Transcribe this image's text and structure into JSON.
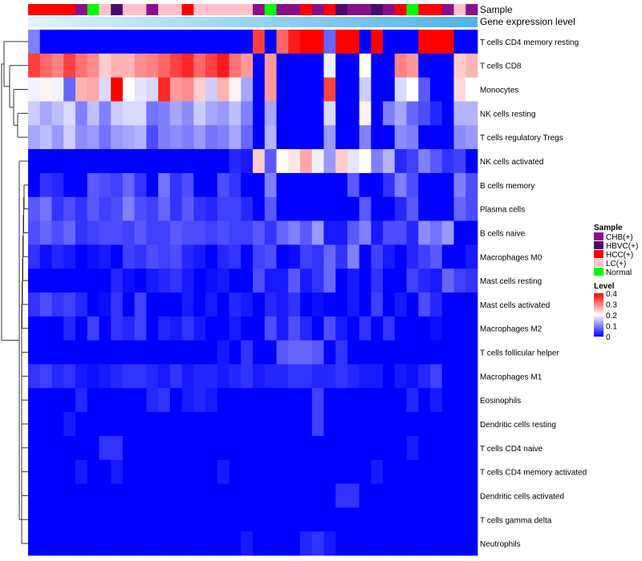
{
  "chart_data": {
    "type": "heatmap",
    "annotation_labels": [
      "Sample",
      "Gene expression level"
    ],
    "rows": [
      "T cells CD4 memory resting",
      "T cells CD8",
      "Monocytes",
      "NK cells resting",
      "T cells regulatory  Tregs",
      "NK cells activated",
      "B cells memory",
      "Plasma cells",
      "B cells naive",
      "Macrophages M0",
      "Mast cells resting",
      "Mast cells activated",
      "Macrophages M2",
      "T cells follicular helper",
      "Macrophages M1",
      "Eosinophils",
      "Dendritic cells resting",
      "T cells CD4 naive",
      "T cells CD4 memory activated",
      "Dendritic cells activated",
      "T cells gamma delta",
      "Neutrophils"
    ],
    "sample_groups": [
      "HCC",
      "HCC",
      "HCC",
      "HCC",
      "CHB",
      "Normal",
      "LC",
      "HBVC",
      "LC",
      "LC",
      "CHB",
      "LC",
      "LC",
      "HCC",
      "LC",
      "LC",
      "LC",
      "LC",
      "LC",
      "CHB",
      "Normal",
      "CHB",
      "CHB",
      "HCC",
      "CHB",
      "HCC",
      "HBVC",
      "CHB",
      "CHB",
      "HBVC",
      "CHB",
      "HCC",
      "Normal",
      "HCC",
      "HCC",
      "CHB",
      "LC",
      "CHB"
    ],
    "columns_count": 38,
    "values": [
      [
        0.1,
        0.0,
        0.0,
        0.0,
        0.0,
        0.0,
        0.0,
        0.0,
        0.0,
        0.0,
        0.0,
        0.0,
        0.0,
        0.0,
        0.0,
        0.0,
        0.0,
        0.0,
        0.0,
        0.35,
        0.0,
        0.32,
        0.38,
        0.4,
        0.4,
        0.08,
        0.4,
        0.4,
        0.0,
        0.4,
        0.0,
        0.0,
        0.0,
        0.4,
        0.4,
        0.4,
        0.0,
        0.0
      ],
      [
        0.35,
        0.32,
        0.3,
        0.35,
        0.31,
        0.29,
        0.24,
        0.26,
        0.26,
        0.29,
        0.3,
        0.32,
        0.35,
        0.37,
        0.32,
        0.35,
        0.38,
        0.31,
        0.28,
        0.0,
        0.28,
        0.0,
        0.0,
        0.0,
        0.0,
        0.19,
        0.0,
        0.0,
        0.2,
        0.0,
        0.0,
        0.3,
        0.28,
        0.0,
        0.0,
        0.0,
        0.24,
        0.26
      ],
      [
        0.19,
        0.21,
        0.19,
        0.08,
        0.26,
        0.27,
        0.17,
        0.4,
        0.2,
        0.18,
        0.17,
        0.37,
        0.28,
        0.29,
        0.24,
        0.16,
        0.26,
        0.21,
        0.13,
        0.0,
        0.28,
        0.0,
        0.0,
        0.0,
        0.0,
        0.35,
        0.0,
        0.0,
        0.16,
        0.0,
        0.0,
        0.17,
        0.2,
        0.07,
        0.0,
        0.0,
        0.23,
        0.2
      ],
      [
        0.16,
        0.13,
        0.15,
        0.17,
        0.1,
        0.15,
        0.1,
        0.16,
        0.17,
        0.17,
        0.09,
        0.1,
        0.13,
        0.11,
        0.16,
        0.13,
        0.12,
        0.15,
        0.1,
        0.0,
        0.13,
        0.0,
        0.0,
        0.0,
        0.0,
        0.17,
        0.0,
        0.0,
        0.21,
        0.0,
        0.1,
        0.13,
        0.08,
        0.06,
        0.03,
        0.0,
        0.14,
        0.14
      ],
      [
        0.13,
        0.15,
        0.12,
        0.16,
        0.11,
        0.12,
        0.09,
        0.12,
        0.13,
        0.14,
        0.06,
        0.1,
        0.11,
        0.1,
        0.12,
        0.09,
        0.1,
        0.13,
        0.08,
        0.0,
        0.14,
        0.0,
        0.0,
        0.0,
        0.0,
        0.12,
        0.0,
        0.0,
        0.1,
        0.0,
        0.0,
        0.11,
        0.1,
        0.0,
        0.0,
        0.0,
        0.11,
        0.12
      ],
      [
        0.0,
        0.0,
        0.0,
        0.0,
        0.0,
        0.0,
        0.0,
        0.0,
        0.0,
        0.0,
        0.0,
        0.0,
        0.0,
        0.0,
        0.0,
        0.0,
        0.0,
        0.03,
        0.02,
        0.24,
        0.07,
        0.2,
        0.22,
        0.27,
        0.19,
        0.12,
        0.24,
        0.18,
        0.2,
        0.1,
        0.14,
        0.03,
        0.05,
        0.1,
        0.07,
        0.04,
        0.05,
        0.0
      ],
      [
        0.0,
        0.04,
        0.03,
        0.0,
        0.0,
        0.07,
        0.06,
        0.05,
        0.08,
        0.04,
        0.0,
        0.09,
        0.04,
        0.06,
        0.0,
        0.0,
        0.06,
        0.04,
        0.0,
        0.0,
        0.1,
        0.0,
        0.0,
        0.0,
        0.0,
        0.0,
        0.0,
        0.07,
        0.0,
        0.0,
        0.04,
        0.1,
        0.06,
        0.0,
        0.0,
        0.0,
        0.1,
        0.06
      ],
      [
        0.07,
        0.09,
        0.04,
        0.06,
        0.04,
        0.07,
        0.05,
        0.06,
        0.1,
        0.06,
        0.05,
        0.08,
        0.04,
        0.07,
        0.04,
        0.03,
        0.05,
        0.05,
        0.03,
        0.0,
        0.07,
        0.0,
        0.0,
        0.0,
        0.0,
        0.0,
        0.0,
        0.0,
        0.07,
        0.0,
        0.0,
        0.03,
        0.07,
        0.0,
        0.0,
        0.0,
        0.08,
        0.06
      ],
      [
        0.06,
        0.08,
        0.06,
        0.08,
        0.04,
        0.05,
        0.06,
        0.06,
        0.05,
        0.07,
        0.05,
        0.05,
        0.07,
        0.06,
        0.06,
        0.05,
        0.06,
        0.05,
        0.05,
        0.07,
        0.04,
        0.08,
        0.1,
        0.07,
        0.12,
        0.02,
        0.02,
        0.07,
        0.1,
        0.02,
        0.06,
        0.06,
        0.03,
        0.11,
        0.09,
        0.12,
        0.0,
        0.0
      ],
      [
        0.04,
        0.01,
        0.03,
        0.02,
        0.0,
        0.01,
        0.02,
        0.0,
        0.05,
        0.04,
        0.06,
        0.05,
        0.06,
        0.03,
        0.02,
        0.0,
        0.03,
        0.04,
        0.0,
        0.05,
        0.06,
        0.0,
        0.01,
        0.05,
        0.04,
        0.08,
        0.04,
        0.1,
        0.0,
        0.05,
        0.02,
        0.0,
        0.03,
        0.05,
        0.07,
        0.0,
        0.0,
        0.02
      ],
      [
        0.0,
        0.0,
        0.0,
        0.0,
        0.0,
        0.0,
        0.0,
        0.03,
        0.01,
        0.0,
        0.02,
        0.03,
        0.04,
        0.02,
        0.0,
        0.01,
        0.02,
        0.0,
        0.0,
        0.06,
        0.02,
        0.02,
        0.07,
        0.02,
        0.04,
        0.08,
        0.0,
        0.02,
        0.0,
        0.04,
        0.0,
        0.0,
        0.05,
        0.03,
        0.02,
        0.08,
        0.05,
        0.04
      ],
      [
        0.04,
        0.06,
        0.04,
        0.05,
        0.03,
        0.0,
        0.01,
        0.04,
        0.0,
        0.05,
        0.0,
        0.0,
        0.0,
        0.02,
        0.0,
        0.02,
        0.0,
        0.03,
        0.02,
        0.0,
        0.03,
        0.02,
        0.04,
        0.0,
        0.01,
        0.0,
        0.0,
        0.02,
        0.0,
        0.05,
        0.0,
        0.02,
        0.0,
        0.06,
        0.03,
        0.0,
        0.0,
        0.0
      ],
      [
        0.0,
        0.0,
        0.0,
        0.03,
        0.0,
        0.05,
        0.0,
        0.04,
        0.03,
        0.05,
        0.0,
        0.03,
        0.02,
        0.04,
        0.02,
        0.0,
        0.0,
        0.02,
        0.0,
        0.0,
        0.06,
        0.02,
        0.06,
        0.03,
        0.0,
        0.06,
        0.02,
        0.0,
        0.04,
        0.0,
        0.04,
        0.0,
        0.0,
        0.0,
        0.01,
        0.0,
        0.0,
        0.0
      ],
      [
        0.0,
        0.0,
        0.0,
        0.0,
        0.0,
        0.0,
        0.0,
        0.0,
        0.0,
        0.0,
        0.0,
        0.0,
        0.0,
        0.0,
        0.0,
        0.0,
        0.02,
        0.0,
        0.04,
        0.0,
        0.0,
        0.07,
        0.08,
        0.08,
        0.07,
        0.0,
        0.04,
        0.0,
        0.0,
        0.0,
        0.0,
        0.0,
        0.0,
        0.0,
        0.0,
        0.0,
        0.0,
        0.0
      ],
      [
        0.04,
        0.05,
        0.03,
        0.04,
        0.02,
        0.01,
        0.02,
        0.03,
        0.04,
        0.04,
        0.03,
        0.02,
        0.04,
        0.02,
        0.03,
        0.03,
        0.02,
        0.03,
        0.04,
        0.02,
        0.03,
        0.03,
        0.04,
        0.04,
        0.03,
        0.03,
        0.04,
        0.03,
        0.02,
        0.02,
        0.0,
        0.02,
        0.01,
        0.03,
        0.05,
        0.0,
        0.0,
        0.0
      ],
      [
        0.0,
        0.0,
        0.0,
        0.0,
        0.03,
        0.0,
        0.0,
        0.0,
        0.0,
        0.0,
        0.03,
        0.04,
        0.0,
        0.02,
        0.03,
        0.02,
        0.0,
        0.0,
        0.0,
        0.0,
        0.0,
        0.0,
        0.0,
        0.0,
        0.05,
        0.0,
        0.0,
        0.0,
        0.0,
        0.0,
        0.0,
        0.0,
        0.03,
        0.0,
        0.02,
        0.0,
        0.0,
        0.0
      ],
      [
        0.0,
        0.0,
        0.0,
        0.02,
        0.0,
        0.0,
        0.0,
        0.0,
        0.0,
        0.0,
        0.0,
        0.0,
        0.0,
        0.0,
        0.0,
        0.0,
        0.0,
        0.0,
        0.0,
        0.0,
        0.0,
        0.0,
        0.0,
        0.0,
        0.05,
        0.0,
        0.0,
        0.0,
        0.0,
        0.0,
        0.0,
        0.0,
        0.0,
        0.0,
        0.0,
        0.0,
        0.0,
        0.0
      ],
      [
        0.0,
        0.0,
        0.0,
        0.0,
        0.0,
        0.0,
        0.04,
        0.04,
        0.0,
        0.0,
        0.0,
        0.0,
        0.0,
        0.0,
        0.0,
        0.0,
        0.0,
        0.0,
        0.0,
        0.0,
        0.0,
        0.0,
        0.0,
        0.0,
        0.0,
        0.0,
        0.0,
        0.0,
        0.0,
        0.0,
        0.0,
        0.0,
        0.02,
        0.0,
        0.0,
        0.0,
        0.0,
        0.0
      ],
      [
        0.0,
        0.0,
        0.0,
        0.0,
        0.02,
        0.0,
        0.0,
        0.02,
        0.0,
        0.0,
        0.0,
        0.0,
        0.0,
        0.0,
        0.0,
        0.0,
        0.02,
        0.0,
        0.0,
        0.0,
        0.0,
        0.0,
        0.0,
        0.0,
        0.0,
        0.0,
        0.0,
        0.0,
        0.0,
        0.02,
        0.0,
        0.0,
        0.0,
        0.0,
        0.0,
        0.0,
        0.0,
        0.0
      ],
      [
        0.0,
        0.0,
        0.0,
        0.0,
        0.0,
        0.0,
        0.0,
        0.0,
        0.0,
        0.0,
        0.0,
        0.0,
        0.0,
        0.0,
        0.0,
        0.0,
        0.0,
        0.0,
        0.0,
        0.0,
        0.0,
        0.0,
        0.0,
        0.0,
        0.0,
        0.0,
        0.04,
        0.04,
        0.0,
        0.0,
        0.0,
        0.0,
        0.0,
        0.0,
        0.0,
        0.0,
        0.0,
        0.0
      ],
      [
        0.0,
        0.0,
        0.0,
        0.0,
        0.0,
        0.0,
        0.0,
        0.0,
        0.0,
        0.0,
        0.0,
        0.0,
        0.0,
        0.0,
        0.0,
        0.0,
        0.0,
        0.0,
        0.0,
        0.0,
        0.0,
        0.0,
        0.0,
        0.0,
        0.0,
        0.0,
        0.0,
        0.0,
        0.0,
        0.0,
        0.0,
        0.0,
        0.0,
        0.0,
        0.0,
        0.0,
        0.0,
        0.0
      ],
      [
        0.0,
        0.0,
        0.0,
        0.0,
        0.0,
        0.0,
        0.0,
        0.0,
        0.0,
        0.0,
        0.0,
        0.0,
        0.0,
        0.0,
        0.0,
        0.0,
        0.0,
        0.0,
        0.02,
        0.0,
        0.0,
        0.0,
        0.0,
        0.03,
        0.04,
        0.02,
        0.0,
        0.0,
        0.0,
        0.0,
        0.0,
        0.0,
        0.0,
        0.0,
        0.0,
        0.0,
        0.0,
        0.0
      ]
    ],
    "sample_legend": {
      "title": "Sample",
      "entries": [
        {
          "label": "CHB(+)",
          "color": "#8B0F8B"
        },
        {
          "label": "HBVC(+)",
          "color": "#4B0A6E"
        },
        {
          "label": "HCC(+)",
          "color": "#FF0000"
        },
        {
          "label": "LC(+)",
          "color": "#FFC0CB"
        },
        {
          "label": "Normal",
          "color": "#00FF00"
        }
      ]
    },
    "level_legend": {
      "title": "Level",
      "ticks": [
        "0.4",
        "0.3",
        "0.2",
        "0.1",
        "0"
      ],
      "min": 0,
      "max": 0.4
    },
    "colormap": {
      "low": "#0000FF",
      "mid": "#FFFFFF",
      "high": "#FF0000"
    },
    "gene_expression_gradient": {
      "start": "#E0F3FF",
      "end": "#4FB4E8"
    }
  }
}
